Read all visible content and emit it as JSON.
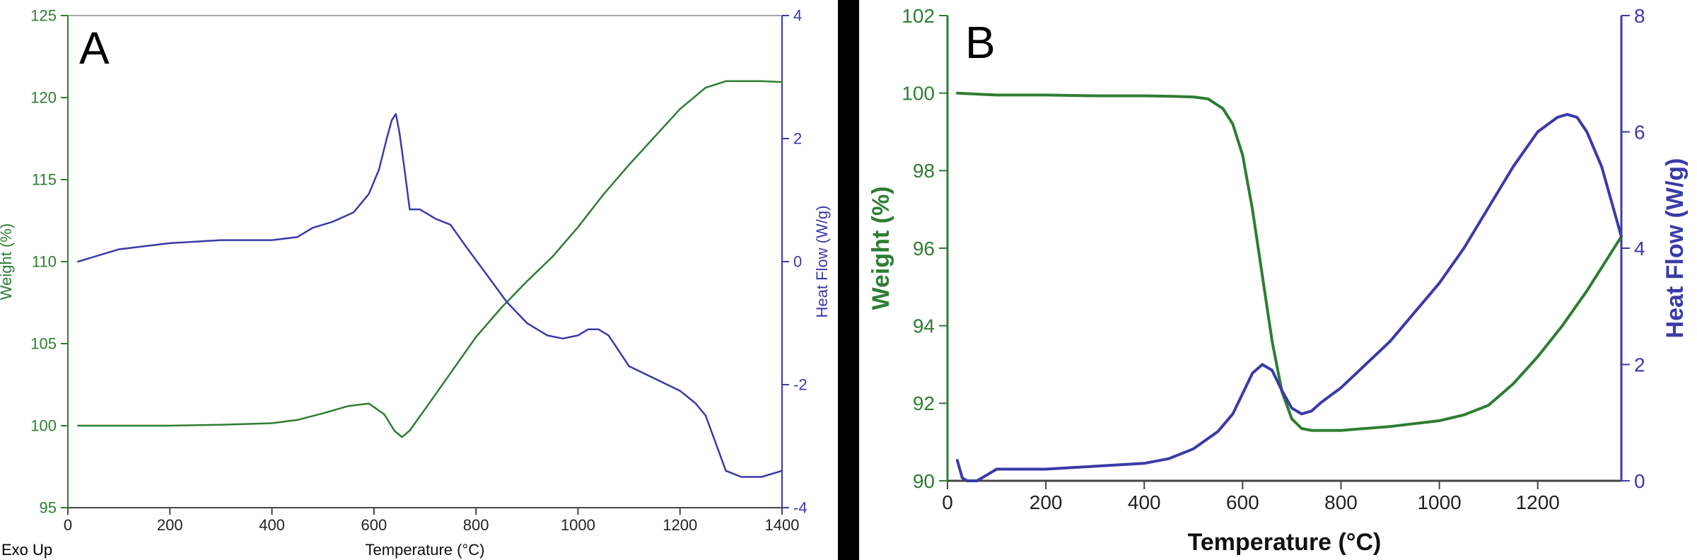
{
  "chart_data": [
    {
      "type": "line",
      "panel_label": "A",
      "xlabel": "Temperature (°C)",
      "ylabel": "Weight (%)",
      "y2label": "Heat Flow (W/g)",
      "corner_note": "Exo Up",
      "xlim": [
        0,
        1400
      ],
      "ylim": [
        95,
        125
      ],
      "y2lim": [
        -4,
        4
      ],
      "xticks": [
        "0",
        "200",
        "400",
        "600",
        "800",
        "1000",
        "1200",
        "1400"
      ],
      "yticks": [
        "95",
        "100",
        "105",
        "110",
        "115",
        "120",
        "125"
      ],
      "y2ticks": [
        "-4",
        "-2",
        "0",
        "2",
        "4"
      ],
      "colors": {
        "weight": "#2e7d32",
        "heat": "#3a3aa8"
      },
      "series": [
        {
          "axis": "left",
          "color": "#2e7d32",
          "x": [
            20,
            100,
            200,
            300,
            400,
            450,
            500,
            550,
            590,
            620,
            640,
            655,
            670,
            700,
            750,
            800,
            850,
            900,
            950,
            1000,
            1050,
            1100,
            1150,
            1200,
            1250,
            1290,
            1320,
            1360,
            1400
          ],
          "y": [
            100,
            100,
            100,
            100.05,
            100.15,
            100.35,
            100.75,
            101.2,
            101.35,
            100.7,
            99.7,
            99.3,
            99.7,
            101.0,
            103.2,
            105.4,
            107.2,
            108.8,
            110.3,
            112.1,
            114.1,
            115.9,
            117.6,
            119.3,
            120.6,
            121.0,
            121.0,
            121.0,
            120.95
          ]
        },
        {
          "axis": "right",
          "color": "#3a3aa8",
          "x": [
            20,
            100,
            200,
            300,
            400,
            450,
            480,
            520,
            560,
            590,
            610,
            625,
            635,
            643,
            650,
            660,
            670,
            690,
            720,
            750,
            780,
            820,
            860,
            900,
            940,
            970,
            1000,
            1020,
            1040,
            1060,
            1080,
            1100,
            1150,
            1200,
            1230,
            1250,
            1270,
            1290,
            1320,
            1360,
            1400
          ],
          "y": [
            0,
            0.2,
            0.3,
            0.35,
            0.35,
            0.4,
            0.55,
            0.65,
            0.8,
            1.1,
            1.5,
            2.0,
            2.3,
            2.4,
            2.1,
            1.5,
            0.85,
            0.85,
            0.7,
            0.6,
            0.25,
            -0.2,
            -0.65,
            -1.0,
            -1.2,
            -1.25,
            -1.2,
            -1.1,
            -1.1,
            -1.2,
            -1.45,
            -1.7,
            -1.9,
            -2.1,
            -2.3,
            -2.5,
            -2.95,
            -3.4,
            -3.5,
            -3.5,
            -3.4
          ]
        }
      ]
    },
    {
      "type": "line",
      "panel_label": "B",
      "xlabel": "Temperature (°C)",
      "ylabel": "Weight (%)",
      "y2label": "Heat Flow (W/g)",
      "xlim": [
        0,
        1370
      ],
      "ylim": [
        90,
        102
      ],
      "y2lim": [
        0,
        8
      ],
      "xticks": [
        "0",
        "200",
        "400",
        "600",
        "800",
        "1000",
        "1200"
      ],
      "yticks": [
        "90",
        "92",
        "94",
        "96",
        "98",
        "100",
        "102"
      ],
      "y2ticks": [
        "0",
        "2",
        "4",
        "6",
        "8"
      ],
      "colors": {
        "weight": "#2e7d32",
        "heat": "#3a3aa8"
      },
      "series": [
        {
          "axis": "left",
          "color": "#2e7d32",
          "x": [
            20,
            100,
            200,
            300,
            400,
            450,
            500,
            530,
            560,
            580,
            600,
            620,
            640,
            660,
            680,
            700,
            720,
            740,
            760,
            800,
            900,
            1000,
            1050,
            1100,
            1150,
            1200,
            1250,
            1300,
            1370
          ],
          "y": [
            100,
            99.95,
            99.95,
            99.93,
            99.93,
            99.92,
            99.9,
            99.85,
            99.6,
            99.2,
            98.4,
            97.0,
            95.3,
            93.6,
            92.3,
            91.6,
            91.35,
            91.3,
            91.3,
            91.3,
            91.4,
            91.55,
            91.7,
            91.95,
            92.5,
            93.2,
            94.0,
            94.9,
            96.3
          ]
        },
        {
          "axis": "right",
          "color": "#3a3aa8",
          "x": [
            20,
            30,
            40,
            60,
            80,
            100,
            150,
            200,
            300,
            400,
            450,
            500,
            550,
            580,
            600,
            620,
            640,
            660,
            680,
            700,
            720,
            740,
            760,
            800,
            900,
            1000,
            1050,
            1100,
            1150,
            1200,
            1240,
            1260,
            1280,
            1300,
            1330,
            1370
          ],
          "y": [
            0.35,
            0.05,
            0.0,
            0.0,
            0.1,
            0.2,
            0.2,
            0.2,
            0.25,
            0.3,
            0.38,
            0.55,
            0.85,
            1.15,
            1.5,
            1.85,
            2.0,
            1.9,
            1.55,
            1.25,
            1.15,
            1.2,
            1.35,
            1.6,
            2.4,
            3.4,
            4.0,
            4.7,
            5.4,
            6.0,
            6.25,
            6.3,
            6.25,
            6.0,
            5.4,
            4.2
          ]
        }
      ]
    }
  ]
}
